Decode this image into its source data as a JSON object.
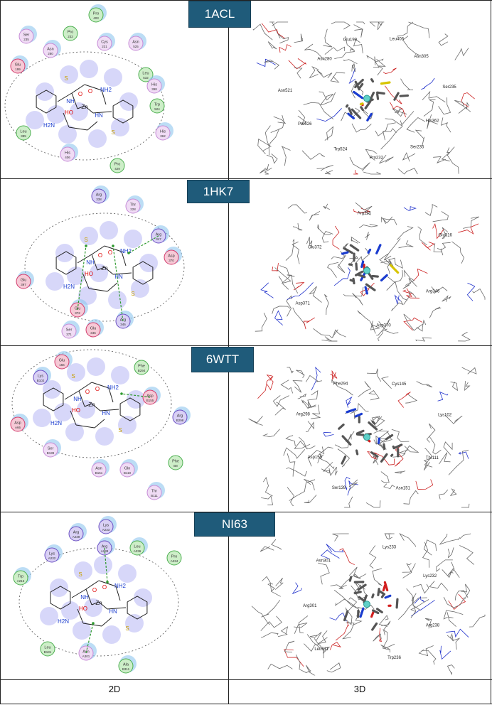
{
  "panels": [
    {
      "id": "1ACL",
      "residues_2d": [
        {
          "name": "Pro",
          "num": "403",
          "kind": "hydrophobic"
        },
        {
          "name": "Ser",
          "num": "235",
          "kind": "polar"
        },
        {
          "name": "Pro",
          "num": "232",
          "kind": "hydrophobic"
        },
        {
          "name": "Asn",
          "num": "280",
          "kind": "polar"
        },
        {
          "name": "Cys",
          "num": "231",
          "kind": "polar"
        },
        {
          "name": "Asn",
          "num": "525",
          "kind": "polar"
        },
        {
          "name": "Glu",
          "num": "199",
          "kind": "acidic"
        },
        {
          "name": "Leu",
          "num": "532",
          "kind": "hydrophobic"
        },
        {
          "name": "Trp",
          "num": "524",
          "kind": "hydrophobic"
        },
        {
          "name": "His",
          "num": "398",
          "kind": "polar"
        },
        {
          "name": "Leu",
          "num": "385",
          "kind": "hydrophobic"
        },
        {
          "name": "His",
          "num": "362",
          "kind": "polar"
        },
        {
          "name": "His",
          "num": "406",
          "kind": "polar"
        },
        {
          "name": "Pro",
          "num": "429",
          "kind": "hydrophobic"
        }
      ],
      "labels_3d": [
        "His362",
        "Ser235",
        "Pro232",
        "Trp524",
        "Pro526",
        "Asn521",
        "Asn280",
        "Glu199",
        "Leu406",
        "Asn305",
        "Ser235"
      ]
    },
    {
      "id": "1HK7",
      "residues_2d": [
        {
          "name": "Arg",
          "num": "338",
          "kind": "basic"
        },
        {
          "name": "Thr",
          "num": "228",
          "kind": "polar"
        },
        {
          "name": "Arg",
          "num": "347",
          "kind": "basic"
        },
        {
          "name": "Asp",
          "num": "370",
          "kind": "acidic"
        },
        {
          "name": "Glu",
          "num": "397",
          "kind": "acidic"
        },
        {
          "name": "Glu",
          "num": "372",
          "kind": "acidic"
        },
        {
          "name": "Ser",
          "num": "371",
          "kind": "polar"
        },
        {
          "name": "Glu",
          "num": "346",
          "kind": "acidic"
        },
        {
          "name": "Arg",
          "num": "346",
          "kind": "basic"
        }
      ],
      "labels_3d": [
        "Arg346",
        "Asp370",
        "Asp371",
        "Glu372",
        "Arg118",
        "Glu316"
      ]
    },
    {
      "id": "6WTT",
      "residues_2d": [
        {
          "name": "Glu",
          "num": "166",
          "kind": "acidic"
        },
        {
          "name": "Phe",
          "num": "B294",
          "kind": "hydrophobic"
        },
        {
          "name": "Lys",
          "num": "B102",
          "kind": "basic"
        },
        {
          "name": "Asp",
          "num": "B155",
          "kind": "acidic"
        },
        {
          "name": "Asp",
          "num": "A66",
          "kind": "acidic"
        },
        {
          "name": "Arg",
          "num": "B298",
          "kind": "basic"
        },
        {
          "name": "Ser",
          "num": "B139",
          "kind": "polar"
        },
        {
          "name": "Phe",
          "num": "B8",
          "kind": "hydrophobic"
        },
        {
          "name": "Asn",
          "num": "B151",
          "kind": "polar"
        },
        {
          "name": "Gln",
          "num": "B110",
          "kind": "polar"
        },
        {
          "name": "Thr",
          "num": "B111",
          "kind": "polar"
        }
      ],
      "labels_3d": [
        "Thr111",
        "Asn151",
        "Ser139",
        "Asp153",
        "Arg298",
        "Phe294",
        "Cys145",
        "Lys102"
      ]
    },
    {
      "id": "NI63",
      "residues_2d": [
        {
          "name": "Lys",
          "num": "A233",
          "kind": "basic"
        },
        {
          "name": "Arg",
          "num": "A239",
          "kind": "basic"
        },
        {
          "name": "Arg",
          "num": "A238",
          "kind": "basic"
        },
        {
          "name": "Leu",
          "num": "A236",
          "kind": "hydrophobic"
        },
        {
          "name": "Lys",
          "num": "A232",
          "kind": "basic"
        },
        {
          "name": "Pro",
          "num": "A234",
          "kind": "hydrophobic"
        },
        {
          "name": "Trp",
          "num": "A216",
          "kind": "hydrophobic"
        },
        {
          "name": "Leu",
          "num": "B131",
          "kind": "hydrophobic"
        },
        {
          "name": "Asn",
          "num": "A301",
          "kind": "polar"
        },
        {
          "name": "Ala",
          "num": "B311",
          "kind": "hydrophobic"
        }
      ],
      "labels_3d": [
        "Arg238",
        "Trp236",
        "Leu311",
        "Arg301",
        "Asn301",
        "Lys233",
        "Lys232"
      ]
    }
  ],
  "columns": {
    "left": "2D",
    "right": "3D"
  },
  "colors": {
    "header_bg": "#1f5b7a",
    "acidic": "#d23b6c",
    "basic": "#6a4fc2",
    "polar": "#c68bd6",
    "hydrophobic": "#4caf50",
    "contact": "#7070e8",
    "hbond": "#2e9a2e"
  }
}
